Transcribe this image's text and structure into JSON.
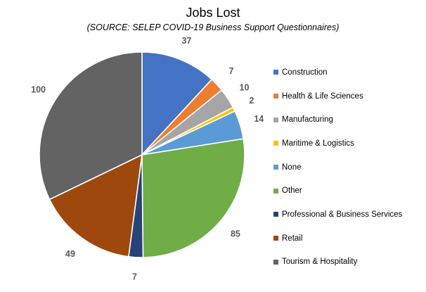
{
  "chart_data": {
    "type": "pie",
    "title": "Jobs Lost",
    "subtitle": "(SOURCE: SELEP COVID-19 Business Support Questionnaires)",
    "legend_position": "right",
    "slices": [
      {
        "name": "Construction",
        "value": 37,
        "label": "37",
        "color": "#4472C4"
      },
      {
        "name": "Health & Life Sciences",
        "value": 7,
        "label": "7",
        "color": "#ED7D31"
      },
      {
        "name": "Manufacturing",
        "value": 10,
        "label": "10",
        "color": "#A5A5A5"
      },
      {
        "name": "Maritime & Logistics",
        "value": 2,
        "label": "2",
        "color": "#FFC000"
      },
      {
        "name": "None",
        "value": 14,
        "label": "14",
        "color": "#5B9BD5"
      },
      {
        "name": "Other",
        "value": 85,
        "label": "85",
        "color": "#70AD47"
      },
      {
        "name": "Professional & Business Services",
        "value": 7,
        "label": "7",
        "color": "#264478"
      },
      {
        "name": "Retail",
        "value": 49,
        "label": "49",
        "color": "#9E480E"
      },
      {
        "name": "Tourism & Hospitality",
        "value": 100,
        "label": "100",
        "color": "#636363"
      }
    ]
  }
}
